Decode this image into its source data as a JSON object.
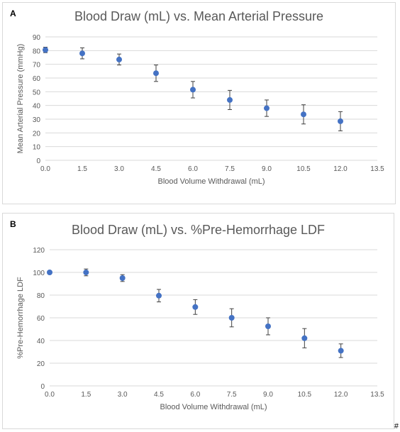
{
  "colors": {
    "marker": "#4472c4",
    "errorbar": "#404040",
    "grid": "#d9d9d9",
    "axis_text": "#595959"
  },
  "corner_mark": "#",
  "chart_data": [
    {
      "panel_label": "A",
      "type": "scatter",
      "title": "Blood Draw (mL) vs. Mean Arterial Pressure",
      "xlabel": "Blood Volume Withdrawal (mL)",
      "ylabel": "Mean Arterial Pressure (mmHg)",
      "xlim": [
        0,
        13.5
      ],
      "ylim": [
        0,
        90
      ],
      "xticks": [
        "0.0",
        "1.5",
        "3.0",
        "4.5",
        "6.0",
        "7.5",
        "9.0",
        "10.5",
        "12.0",
        "13.5"
      ],
      "yticks": [
        "0",
        "10",
        "20",
        "30",
        "40",
        "50",
        "60",
        "70",
        "80",
        "90"
      ],
      "grid": true,
      "x": [
        0,
        1.5,
        3.0,
        4.5,
        6.0,
        7.5,
        9.0,
        10.5,
        12.0
      ],
      "y": [
        80.5,
        78,
        73.5,
        63.5,
        51.5,
        44,
        38,
        33.5,
        28.5
      ],
      "err": [
        2,
        4,
        4,
        6,
        6,
        7,
        6,
        7,
        7
      ]
    },
    {
      "panel_label": "B",
      "type": "scatter",
      "title": "Blood Draw (mL) vs. %Pre-Hemorrhage LDF",
      "xlabel": "Blood Volume Withdrawal (mL)",
      "ylabel": "%Pre-Hemorrhage LDF",
      "xlim": [
        0,
        13.5
      ],
      "ylim": [
        0,
        120
      ],
      "xticks": [
        "0.0",
        "1.5",
        "3.0",
        "4.5",
        "6.0",
        "7.5",
        "9.0",
        "10.5",
        "12.0",
        "13.5"
      ],
      "yticks": [
        "0",
        "20",
        "40",
        "60",
        "80",
        "100",
        "120"
      ],
      "grid": true,
      "x": [
        0,
        1.5,
        3.0,
        4.5,
        6.0,
        7.5,
        9.0,
        10.5,
        12.0
      ],
      "y": [
        100,
        100,
        95,
        79.5,
        69.5,
        60,
        52.5,
        42,
        31
      ],
      "err": [
        0,
        3,
        3,
        5.5,
        6.5,
        8,
        7.5,
        8.5,
        6
      ]
    }
  ]
}
